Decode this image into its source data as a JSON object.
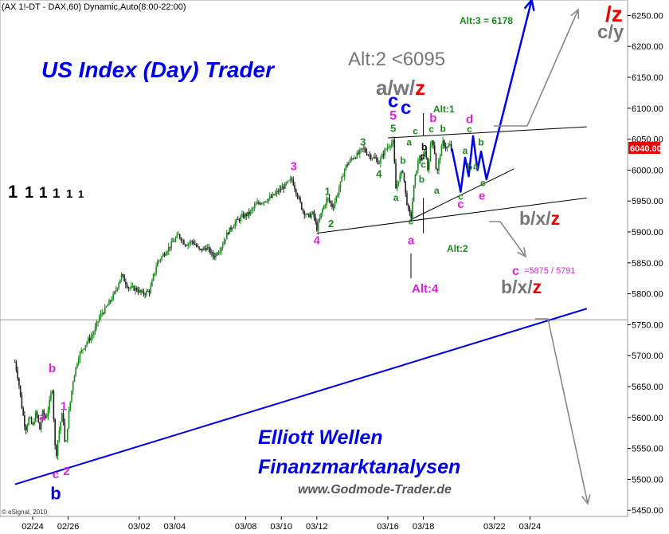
{
  "header_text": "(AX 1!-DT - DAX,60) Dynamic,Auto(8:00-22:00)",
  "footer_credit": "© eSignal, 2010",
  "last_price": "6040.00",
  "title": "US Index (Day) Trader",
  "subtitle_line1": "Elliott Wellen",
  "subtitle_line2": "Finanzmarktanalysen",
  "website": "www.Godmode-Trader.de",
  "colors": {
    "candle_up": "#1a8a1a",
    "candle_down": "#222222",
    "magenta": "#e020e0",
    "green": "#1a8a1a",
    "blue": "#0000ee",
    "red": "#ee0000",
    "gray": "#777777",
    "price_box": "#ee0000"
  },
  "legend_digits": [
    {
      "text": "1",
      "color": "#ee0000"
    },
    {
      "text": "1",
      "color": "#777777"
    },
    {
      "text": "1",
      "color": "#0000ee"
    },
    {
      "text": "1",
      "color": "#e020e0"
    },
    {
      "text": "1",
      "color": "#1a8a1a"
    },
    {
      "text": "1",
      "color": "#000000"
    }
  ],
  "annotations": {
    "alt3": "Alt:3 = 6178",
    "alt2_value": "Alt:2 <6095",
    "awz_aw": "a/w/",
    "awz_z": "z",
    "c_blue": "c",
    "top_z": "/z",
    "cy": "c/y",
    "alt1": "Alt:1",
    "alt2": "Alt:2",
    "alt4": "Alt:4",
    "bxz1_bx": "b/x/",
    "bxz1_z": "z",
    "bxz2_bx": "b/x/",
    "bxz2_z": "z",
    "c_target_c": "c",
    "c_target_value": "=5875 / 5791"
  },
  "wave_labels": [
    {
      "text": "a",
      "color": "#e020e0",
      "d": 0.55,
      "p": 5595,
      "s": 14
    },
    {
      "text": "b",
      "color": "#e020e0",
      "d": 1.1,
      "p": 5673,
      "s": 15
    },
    {
      "text": "c",
      "color": "#e020e0",
      "d": 1.3,
      "p": 5502,
      "s": 15
    },
    {
      "text": "b",
      "color": "#0000ee",
      "d": 1.3,
      "p": 5468,
      "s": 22
    },
    {
      "text": "1",
      "color": "#e020e0",
      "d": 1.75,
      "p": 5612,
      "s": 15
    },
    {
      "text": "2",
      "color": "#e020e0",
      "d": 1.9,
      "p": 5507,
      "s": 15
    },
    {
      "text": "3",
      "color": "#e020e0",
      "d": 14.7,
      "p": 6000,
      "s": 15
    },
    {
      "text": "4",
      "color": "#e020e0",
      "d": 16.0,
      "p": 5880,
      "s": 15
    },
    {
      "text": "1",
      "color": "#1a8a1a",
      "d": 16.6,
      "p": 5960,
      "s": 13
    },
    {
      "text": "2",
      "color": "#1a8a1a",
      "d": 16.8,
      "p": 5908,
      "s": 13
    },
    {
      "text": "3",
      "color": "#1a8a1a",
      "d": 18.6,
      "p": 6040,
      "s": 13
    },
    {
      "text": "4",
      "color": "#1a8a1a",
      "d": 19.5,
      "p": 5988,
      "s": 13
    },
    {
      "text": "5",
      "color": "#e020e0",
      "d": 20.3,
      "p": 6082,
      "s": 16
    },
    {
      "text": "c",
      "color": "#0000ee",
      "d": 20.3,
      "p": 6102,
      "s": 24
    },
    {
      "text": "5",
      "color": "#1a8a1a",
      "d": 20.3,
      "p": 6062,
      "s": 13
    },
    {
      "text": "a",
      "color": "#1a8a1a",
      "d": 20.45,
      "p": 5950,
      "s": 12
    },
    {
      "text": "b",
      "color": "#1a8a1a",
      "d": 20.85,
      "p": 6010,
      "s": 12
    },
    {
      "text": "a",
      "color": "#1a8a1a",
      "d": 21.2,
      "p": 6040,
      "s": 12
    },
    {
      "text": "c",
      "color": "#1a8a1a",
      "d": 21.3,
      "p": 5912,
      "s": 12
    },
    {
      "text": "a",
      "color": "#e020e0",
      "d": 21.3,
      "p": 5880,
      "s": 15
    },
    {
      "text": "c",
      "color": "#1a8a1a",
      "d": 21.55,
      "p": 6058,
      "s": 12
    },
    {
      "text": "b",
      "color": "#1a8a1a",
      "d": 21.9,
      "p": 5980,
      "s": 12
    },
    {
      "text": "c",
      "color": "#000000",
      "d": 21.95,
      "p": 6017,
      "s": 12
    },
    {
      "text": "b",
      "color": "#000000",
      "d": 22.05,
      "p": 6032,
      "s": 12
    },
    {
      "text": "c",
      "color": "#1a8a1a",
      "d": 22.0,
      "p": 6004,
      "s": 12
    },
    {
      "text": "c",
      "color": "#1a8a1a",
      "d": 22.45,
      "p": 6061,
      "s": 12
    },
    {
      "text": "b",
      "color": "#e020e0",
      "d": 22.55,
      "p": 6078,
      "s": 15
    },
    {
      "text": "a",
      "color": "#1a8a1a",
      "d": 22.75,
      "p": 5962,
      "s": 12
    },
    {
      "text": "b",
      "color": "#1a8a1a",
      "d": 23.1,
      "p": 6062,
      "s": 12
    },
    {
      "text": "a",
      "color": "#1a8a1a",
      "d": 24.35,
      "p": 6026,
      "s": 12
    },
    {
      "text": "b",
      "color": "#1a8a1a",
      "d": 24.6,
      "p": 6000,
      "s": 12
    },
    {
      "text": "a",
      "color": "#1a8a1a",
      "d": 24.95,
      "p": 6001,
      "s": 12
    },
    {
      "text": "b",
      "color": "#1a8a1a",
      "d": 25.25,
      "p": 6040,
      "s": 12
    },
    {
      "text": "c",
      "color": "#1a8a1a",
      "d": 25.35,
      "p": 5974,
      "s": 12
    },
    {
      "text": "c",
      "color": "#1a8a1a",
      "d": 24.1,
      "p": 5952,
      "s": 12
    },
    {
      "text": "c",
      "color": "#e020e0",
      "d": 24.1,
      "p": 5939,
      "s": 15
    },
    {
      "text": "d",
      "color": "#e020e0",
      "d": 24.6,
      "p": 6076,
      "s": 15
    },
    {
      "text": "c",
      "color": "#1a8a1a",
      "d": 24.6,
      "p": 6061,
      "s": 12
    },
    {
      "text": "e",
      "color": "#e020e0",
      "d": 25.3,
      "p": 5952,
      "s": 15
    }
  ],
  "chart_data": {
    "type": "candlestick",
    "title": "",
    "xlabel": "",
    "ylabel": "",
    "x_ticks": [
      {
        "label": "02/24",
        "day": 0
      },
      {
        "label": "02/26",
        "day": 2
      },
      {
        "label": "03/02",
        "day": 6
      },
      {
        "label": "03/04",
        "day": 8
      },
      {
        "label": "03/08",
        "day": 12
      },
      {
        "label": "03/10",
        "day": 14
      },
      {
        "label": "03/12",
        "day": 16
      },
      {
        "label": "03/16",
        "day": 20
      },
      {
        "label": "03/18",
        "day": 22
      },
      {
        "label": "03/22",
        "day": 26
      },
      {
        "label": "03/24",
        "day": 28
      }
    ],
    "y_ticks": [
      5450,
      5500,
      5550,
      5600,
      5650,
      5700,
      5750,
      5800,
      5850,
      5900,
      5950,
      6000,
      6050,
      6100,
      6150,
      6200,
      6250
    ],
    "ylim": [
      5440,
      6275
    ],
    "price_path": [
      {
        "d": -1.0,
        "p": 5690
      },
      {
        "d": -0.8,
        "p": 5660
      },
      {
        "d": -0.6,
        "p": 5615
      },
      {
        "d": -0.4,
        "p": 5580
      },
      {
        "d": -0.2,
        "p": 5600
      },
      {
        "d": 0.0,
        "p": 5585
      },
      {
        "d": 0.2,
        "p": 5610
      },
      {
        "d": 0.4,
        "p": 5580
      },
      {
        "d": 0.55,
        "p": 5608
      },
      {
        "d": 0.75,
        "p": 5598
      },
      {
        "d": 0.95,
        "p": 5625
      },
      {
        "d": 1.1,
        "p": 5650
      },
      {
        "d": 1.2,
        "p": 5590
      },
      {
        "d": 1.3,
        "p": 5530
      },
      {
        "d": 1.4,
        "p": 5560
      },
      {
        "d": 1.55,
        "p": 5590
      },
      {
        "d": 1.7,
        "p": 5610
      },
      {
        "d": 1.8,
        "p": 5560
      },
      {
        "d": 1.9,
        "p": 5560
      },
      {
        "d": 2.0,
        "p": 5600
      },
      {
        "d": 2.3,
        "p": 5665
      },
      {
        "d": 2.6,
        "p": 5700
      },
      {
        "d": 3.0,
        "p": 5720
      },
      {
        "d": 3.4,
        "p": 5735
      },
      {
        "d": 3.8,
        "p": 5765
      },
      {
        "d": 4.2,
        "p": 5780
      },
      {
        "d": 4.6,
        "p": 5800
      },
      {
        "d": 5.0,
        "p": 5830
      },
      {
        "d": 5.4,
        "p": 5810
      },
      {
        "d": 5.8,
        "p": 5808
      },
      {
        "d": 6.2,
        "p": 5800
      },
      {
        "d": 6.6,
        "p": 5805
      },
      {
        "d": 7.0,
        "p": 5850
      },
      {
        "d": 7.4,
        "p": 5865
      },
      {
        "d": 7.8,
        "p": 5880
      },
      {
        "d": 8.2,
        "p": 5895
      },
      {
        "d": 8.6,
        "p": 5880
      },
      {
        "d": 9.0,
        "p": 5885
      },
      {
        "d": 9.4,
        "p": 5870
      },
      {
        "d": 9.8,
        "p": 5875
      },
      {
        "d": 10.2,
        "p": 5860
      },
      {
        "d": 10.6,
        "p": 5875
      },
      {
        "d": 11.0,
        "p": 5900
      },
      {
        "d": 11.4,
        "p": 5915
      },
      {
        "d": 11.8,
        "p": 5925
      },
      {
        "d": 12.2,
        "p": 5930
      },
      {
        "d": 12.6,
        "p": 5945
      },
      {
        "d": 13.0,
        "p": 5950
      },
      {
        "d": 13.4,
        "p": 5955
      },
      {
        "d": 13.8,
        "p": 5965
      },
      {
        "d": 14.2,
        "p": 5975
      },
      {
        "d": 14.6,
        "p": 5985
      },
      {
        "d": 14.9,
        "p": 5960
      },
      {
        "d": 15.2,
        "p": 5935
      },
      {
        "d": 15.5,
        "p": 5925
      },
      {
        "d": 15.8,
        "p": 5930
      },
      {
        "d": 16.0,
        "p": 5905
      },
      {
        "d": 16.3,
        "p": 5935
      },
      {
        "d": 16.6,
        "p": 5955
      },
      {
        "d": 16.9,
        "p": 5940
      },
      {
        "d": 17.2,
        "p": 5965
      },
      {
        "d": 17.6,
        "p": 6005
      },
      {
        "d": 18.0,
        "p": 6020
      },
      {
        "d": 18.3,
        "p": 6025
      },
      {
        "d": 18.6,
        "p": 6035
      },
      {
        "d": 18.9,
        "p": 6025
      },
      {
        "d": 19.2,
        "p": 6020
      },
      {
        "d": 19.5,
        "p": 6012
      },
      {
        "d": 19.8,
        "p": 6030
      },
      {
        "d": 20.1,
        "p": 6042
      },
      {
        "d": 20.3,
        "p": 6045
      },
      {
        "d": 20.45,
        "p": 5970
      },
      {
        "d": 20.6,
        "p": 5985
      },
      {
        "d": 20.85,
        "p": 6000
      },
      {
        "d": 21.0,
        "p": 5960
      },
      {
        "d": 21.15,
        "p": 5935
      },
      {
        "d": 21.3,
        "p": 5922
      },
      {
        "d": 21.45,
        "p": 5970
      },
      {
        "d": 21.6,
        "p": 6000
      },
      {
        "d": 21.75,
        "p": 6020
      },
      {
        "d": 21.95,
        "p": 6015
      },
      {
        "d": 22.1,
        "p": 6035
      },
      {
        "d": 22.25,
        "p": 6000
      },
      {
        "d": 22.45,
        "p": 6050
      },
      {
        "d": 22.6,
        "p": 6040
      },
      {
        "d": 22.75,
        "p": 5990
      },
      {
        "d": 22.9,
        "p": 6020
      },
      {
        "d": 23.1,
        "p": 6045
      },
      {
        "d": 23.3,
        "p": 6035
      },
      {
        "d": 23.5,
        "p": 6040
      },
      {
        "d": 23.6,
        "p": 6030
      }
    ],
    "forecast_path": [
      {
        "d": 23.6,
        "p": 6035
      },
      {
        "d": 24.1,
        "p": 5965
      },
      {
        "d": 24.35,
        "p": 6020
      },
      {
        "d": 24.55,
        "p": 5990
      },
      {
        "d": 24.8,
        "p": 6055
      },
      {
        "d": 25.05,
        "p": 6000
      },
      {
        "d": 25.25,
        "p": 6030
      },
      {
        "d": 25.55,
        "p": 5985
      },
      {
        "d": 28.1,
        "p": 6275
      }
    ],
    "trend_lines": [
      {
        "name": "upper-channel",
        "color": "#000000",
        "from": {
          "d": 20.0,
          "p": 6052
        },
        "to": {
          "d": 31.2,
          "p": 6070
        }
      },
      {
        "name": "lower-channel",
        "color": "#000000",
        "from": {
          "d": 16.0,
          "p": 5898
        },
        "to": {
          "d": 31.2,
          "p": 5955
        }
      },
      {
        "name": "triangle-lower",
        "color": "#000000",
        "from": {
          "d": 21.3,
          "p": 5920
        },
        "to": {
          "d": 27.1,
          "p": 6002
        }
      },
      {
        "name": "support-blue",
        "color": "#0000ee",
        "from": {
          "d": -1.0,
          "p": 5492
        },
        "to": {
          "d": 31.2,
          "p": 5776
        }
      }
    ],
    "hline": {
      "p": 5758,
      "color": "#999999"
    },
    "last_price": 6040
  }
}
